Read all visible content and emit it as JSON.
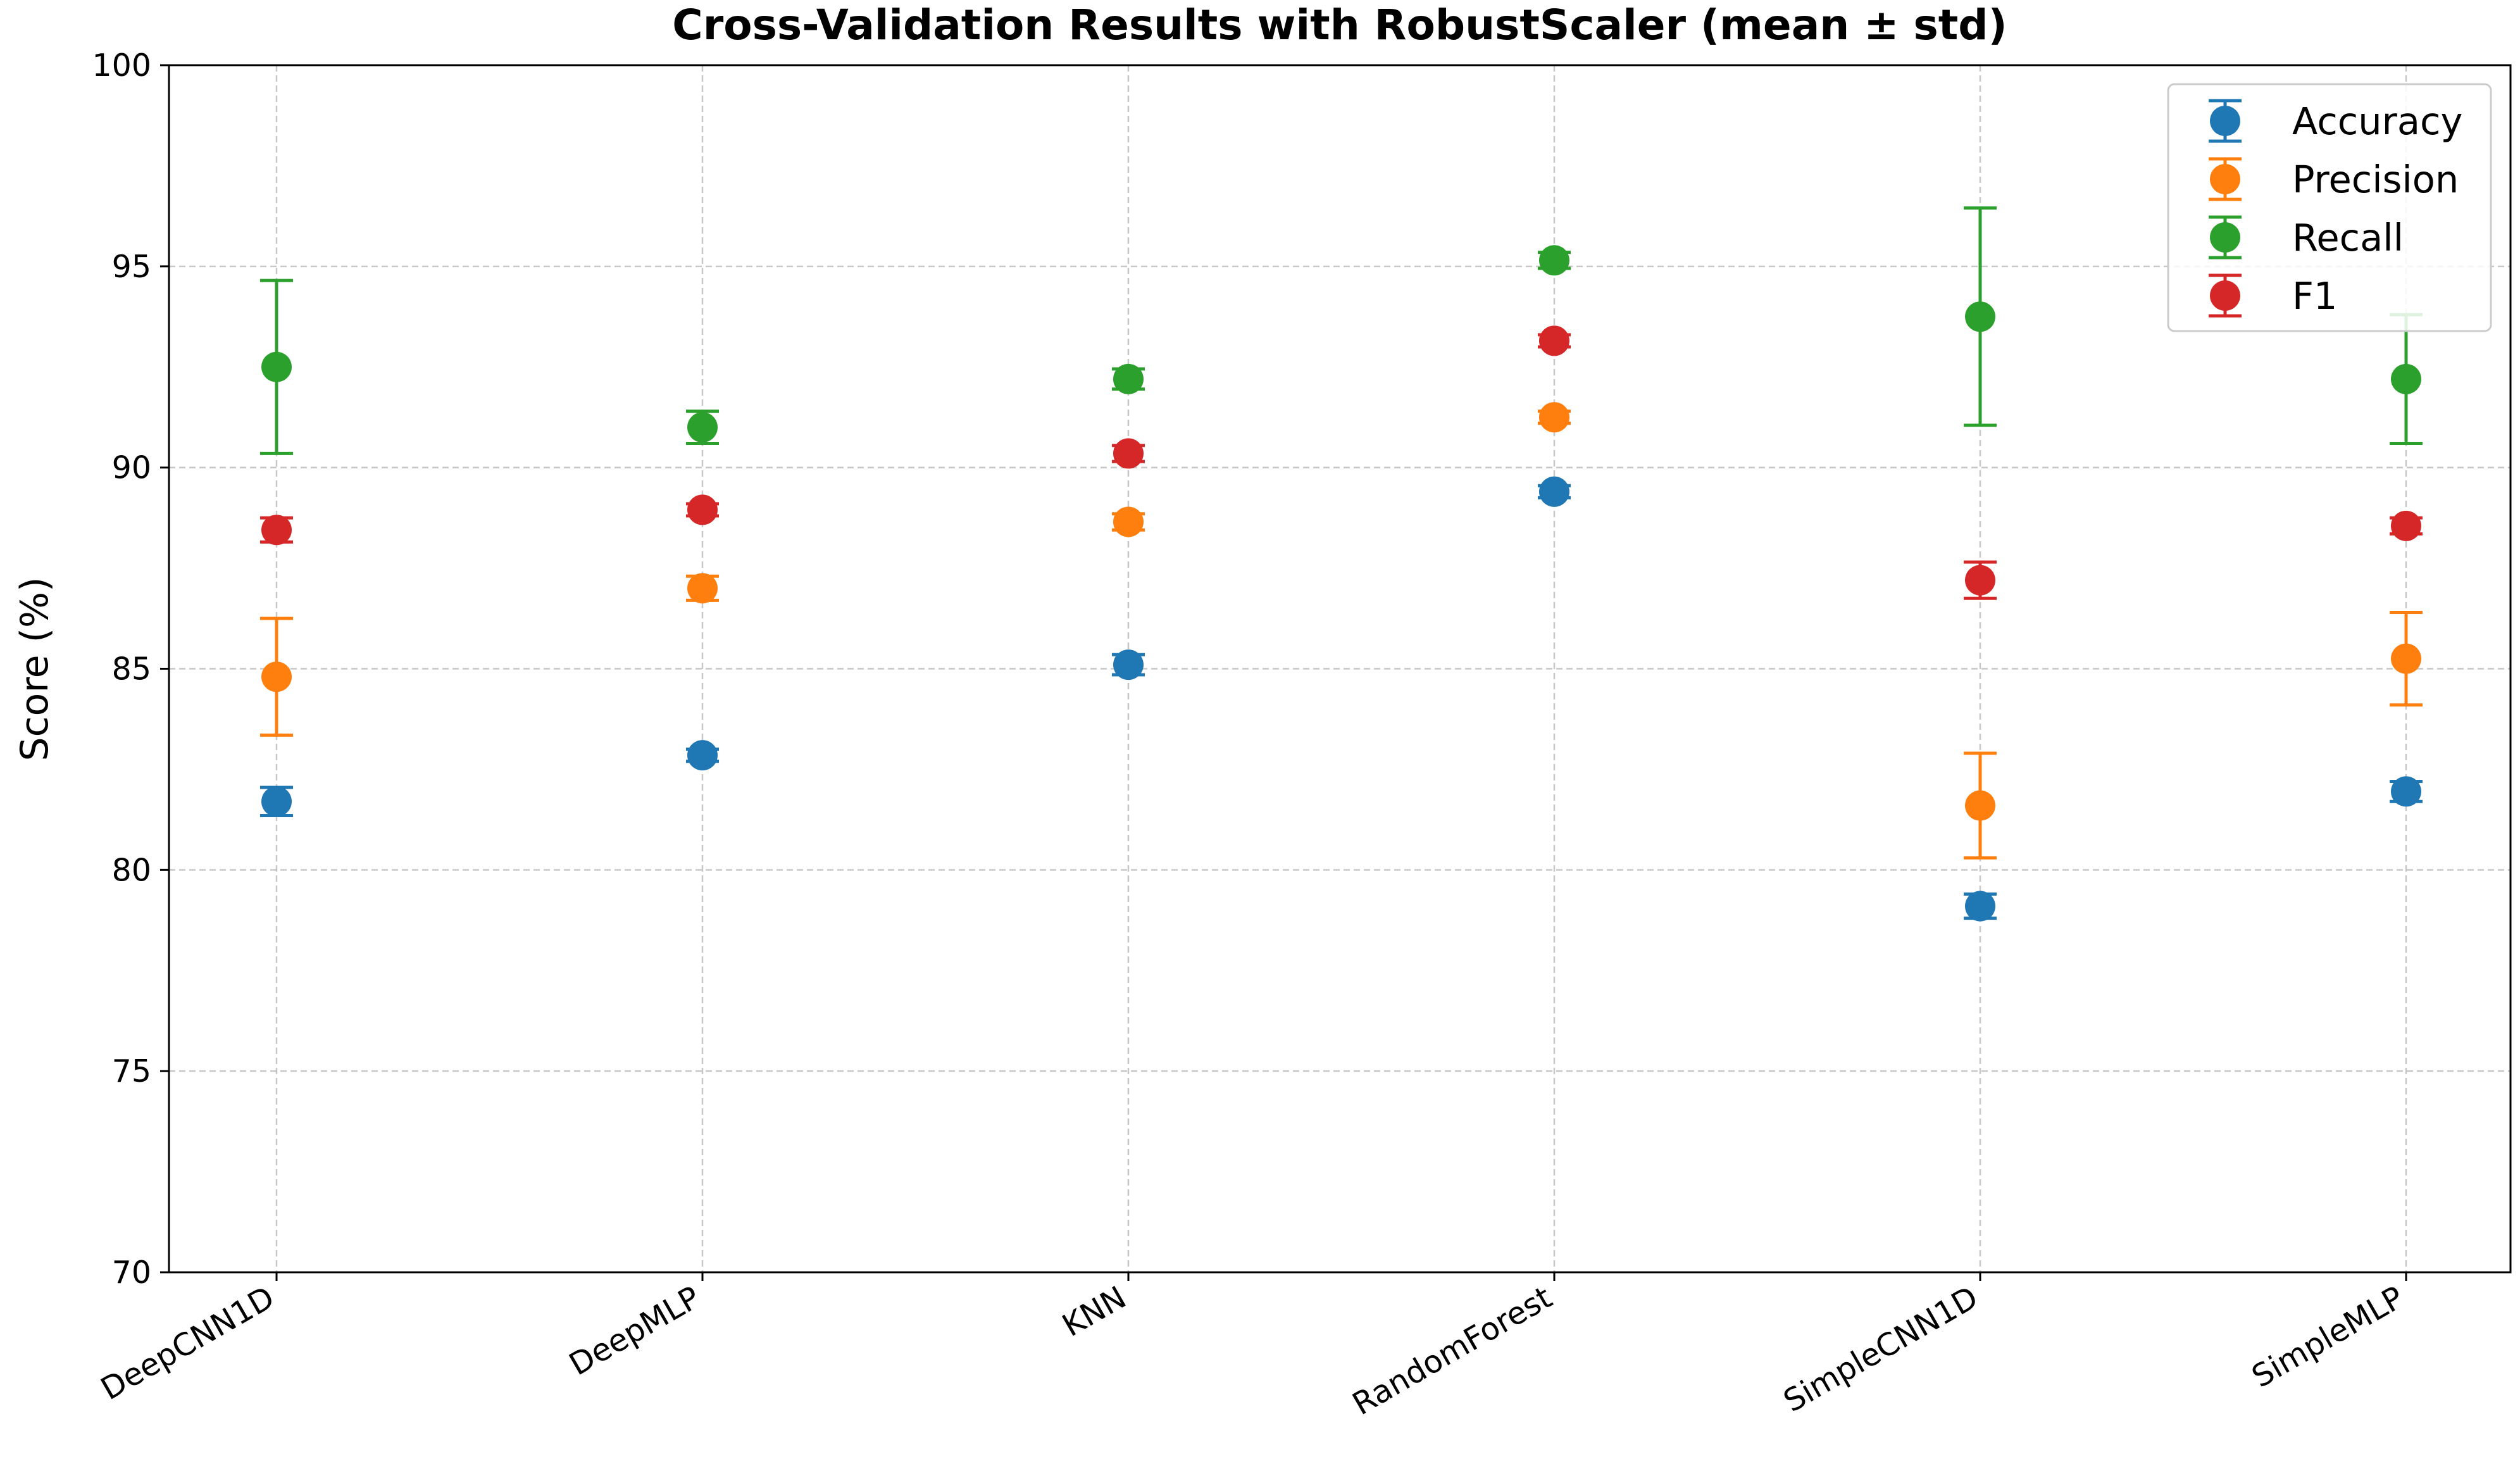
{
  "chart_data": {
    "type": "scatter",
    "title": "Cross-Validation Results with RobustScaler (mean ± std)",
    "xlabel": "",
    "ylabel": "Score (%)",
    "categories": [
      "DeepCNN1D",
      "DeepMLP",
      "KNN",
      "RandomForest",
      "SimpleCNN1D",
      "SimpleMLP"
    ],
    "ylim": [
      70,
      100
    ],
    "yticks": [
      "70",
      "75",
      "80",
      "85",
      "90",
      "95",
      "100"
    ],
    "grid": true,
    "legend_position": "top-right",
    "series": [
      {
        "name": "Accuracy",
        "color": "#1f77b4",
        "values": [
          81.7,
          82.85,
          85.1,
          89.4,
          79.1,
          81.95
        ],
        "errors": [
          0.35,
          0.15,
          0.25,
          0.15,
          0.3,
          0.25
        ]
      },
      {
        "name": "Precision",
        "color": "#ff7f0e",
        "values": [
          84.8,
          87.0,
          88.65,
          91.25,
          81.6,
          85.25
        ],
        "errors": [
          1.45,
          0.3,
          0.2,
          0.15,
          1.3,
          1.15
        ]
      },
      {
        "name": "Recall",
        "color": "#2ca02c",
        "values": [
          92.5,
          91.0,
          92.2,
          95.15,
          93.75,
          92.2
        ],
        "errors": [
          2.15,
          0.4,
          0.25,
          0.2,
          2.7,
          1.6
        ]
      },
      {
        "name": "F1",
        "color": "#d62728",
        "values": [
          88.45,
          88.95,
          90.35,
          93.15,
          87.2,
          88.55
        ],
        "errors": [
          0.3,
          0.15,
          0.2,
          0.15,
          0.45,
          0.2
        ]
      }
    ]
  }
}
